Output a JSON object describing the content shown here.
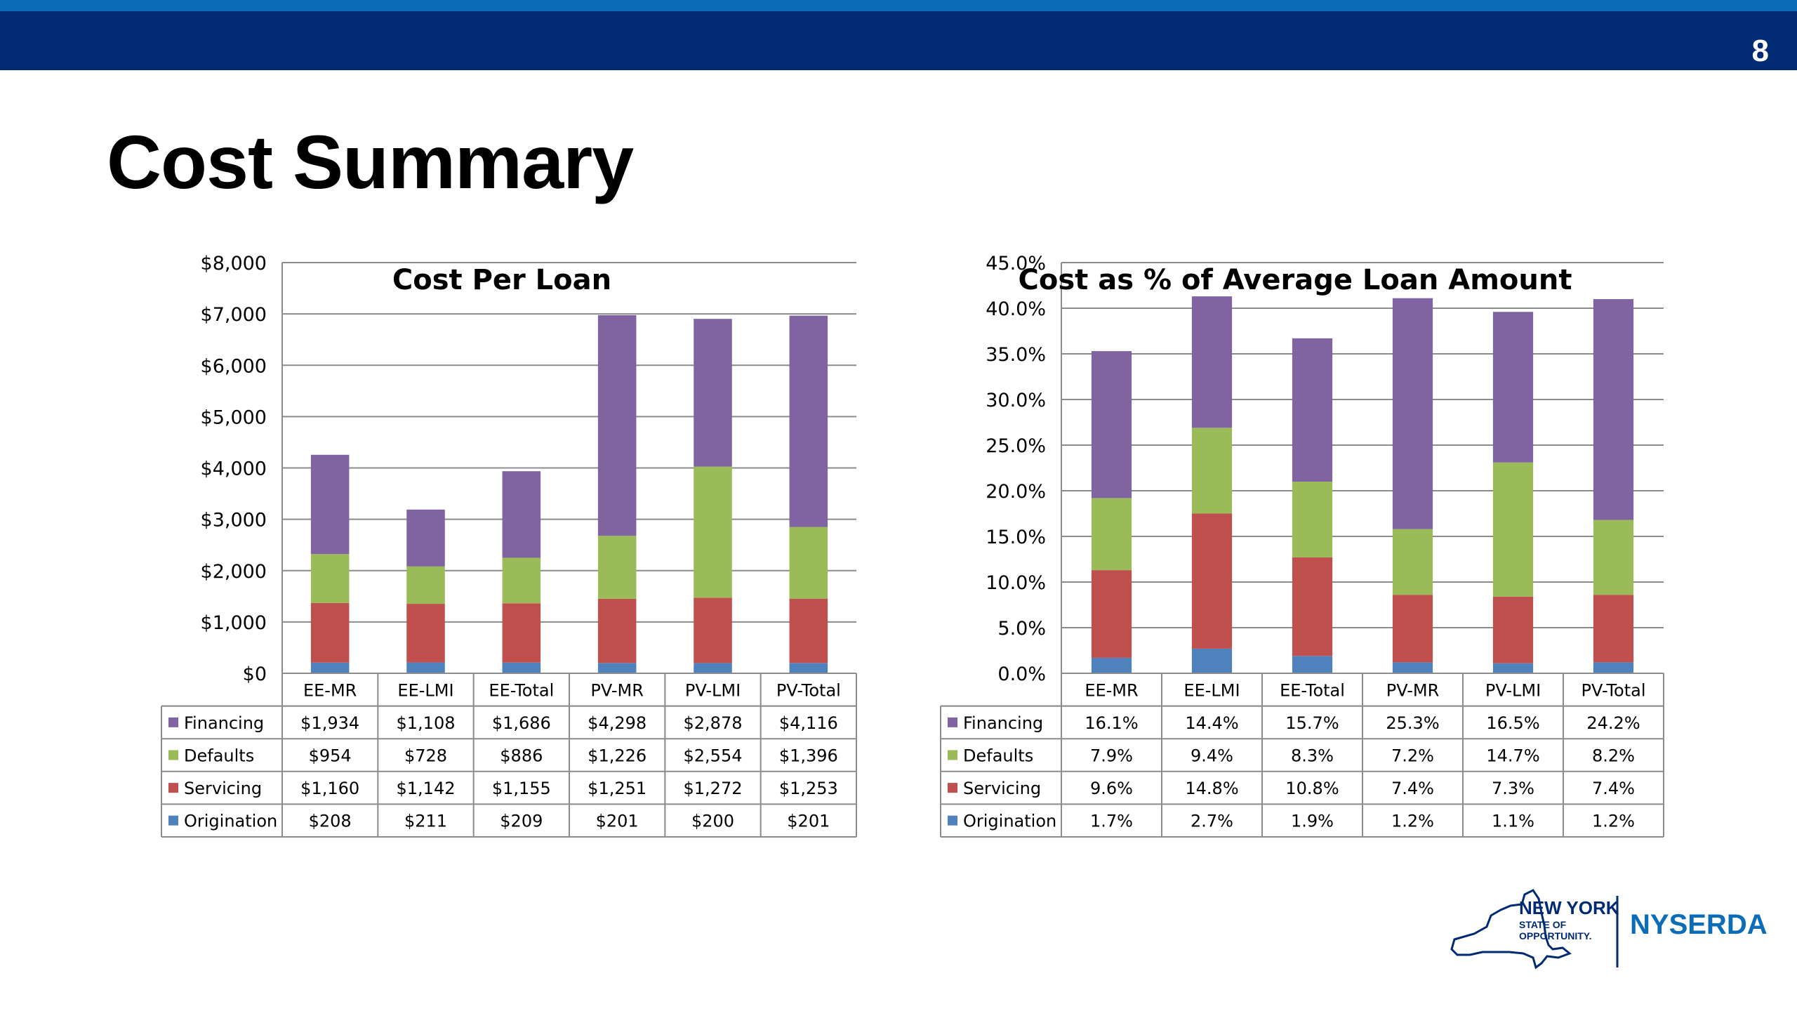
{
  "slide": {
    "page_number": "8",
    "title": "Cost Summary",
    "logo": {
      "line1": "NEW YORK",
      "line2": "STATE OF",
      "line3": "OPPORTUNITY.",
      "brand": "NYSERDA"
    }
  },
  "colors": {
    "band_dark": "#002a72",
    "band_light": "#0b6db8",
    "Financing": "#8064a2",
    "Defaults": "#9bbb59",
    "Servicing": "#c0504d",
    "Origination": "#4f81bd"
  },
  "chart_data": [
    {
      "type": "bar",
      "stacked": true,
      "title": "Cost Per Loan",
      "categories": [
        "EE-MR",
        "EE-LMI",
        "EE-Total",
        "PV-MR",
        "PV-LMI",
        "PV-Total"
      ],
      "ylim": [
        0,
        8000
      ],
      "ytick_values": [
        0,
        1000,
        2000,
        3000,
        4000,
        5000,
        6000,
        7000,
        8000
      ],
      "ytick_labels": [
        "$0",
        "$1,000",
        "$2,000",
        "$3,000",
        "$4,000",
        "$5,000",
        "$6,000",
        "$7,000",
        "$8,000"
      ],
      "grid": true,
      "series": [
        {
          "name": "Financing",
          "values": [
            1934,
            1108,
            1686,
            4298,
            2878,
            4116
          ],
          "labels": [
            "$1,934",
            "$1,108",
            "$1,686",
            "$4,298",
            "$2,878",
            "$4,116"
          ]
        },
        {
          "name": "Defaults",
          "values": [
            954,
            728,
            886,
            1226,
            2554,
            1396
          ],
          "labels": [
            "$954",
            "$728",
            "$886",
            "$1,226",
            "$2,554",
            "$1,396"
          ]
        },
        {
          "name": "Servicing",
          "values": [
            1160,
            1142,
            1155,
            1251,
            1272,
            1253
          ],
          "labels": [
            "$1,160",
            "$1,142",
            "$1,155",
            "$1,251",
            "$1,272",
            "$1,253"
          ]
        },
        {
          "name": "Origination",
          "values": [
            208,
            211,
            209,
            201,
            200,
            201
          ],
          "labels": [
            "$208",
            "$211",
            "$209",
            "$201",
            "$200",
            "$201"
          ]
        }
      ]
    },
    {
      "type": "bar",
      "stacked": true,
      "title": "Cost as % of Average Loan Amount",
      "categories": [
        "EE-MR",
        "EE-LMI",
        "EE-Total",
        "PV-MR",
        "PV-LMI",
        "PV-Total"
      ],
      "ylim": [
        0,
        45
      ],
      "ytick_values": [
        0,
        5,
        10,
        15,
        20,
        25,
        30,
        35,
        40,
        45
      ],
      "ytick_labels": [
        "0.0%",
        "5.0%",
        "10.0%",
        "15.0%",
        "20.0%",
        "25.0%",
        "30.0%",
        "35.0%",
        "40.0%",
        "45.0%"
      ],
      "grid": true,
      "series": [
        {
          "name": "Financing",
          "values": [
            16.1,
            14.4,
            15.7,
            25.3,
            16.5,
            24.2
          ],
          "labels": [
            "16.1%",
            "14.4%",
            "15.7%",
            "25.3%",
            "16.5%",
            "24.2%"
          ]
        },
        {
          "name": "Defaults",
          "values": [
            7.9,
            9.4,
            8.3,
            7.2,
            14.7,
            8.2
          ],
          "labels": [
            "7.9%",
            "9.4%",
            "8.3%",
            "7.2%",
            "14.7%",
            "8.2%"
          ]
        },
        {
          "name": "Servicing",
          "values": [
            9.6,
            14.8,
            10.8,
            7.4,
            7.3,
            7.4
          ],
          "labels": [
            "9.6%",
            "14.8%",
            "10.8%",
            "7.4%",
            "7.3%",
            "7.4%"
          ]
        },
        {
          "name": "Origination",
          "values": [
            1.7,
            2.7,
            1.9,
            1.2,
            1.1,
            1.2
          ],
          "labels": [
            "1.7%",
            "2.7%",
            "1.9%",
            "1.2%",
            "1.1%",
            "1.2%"
          ]
        }
      ]
    }
  ]
}
